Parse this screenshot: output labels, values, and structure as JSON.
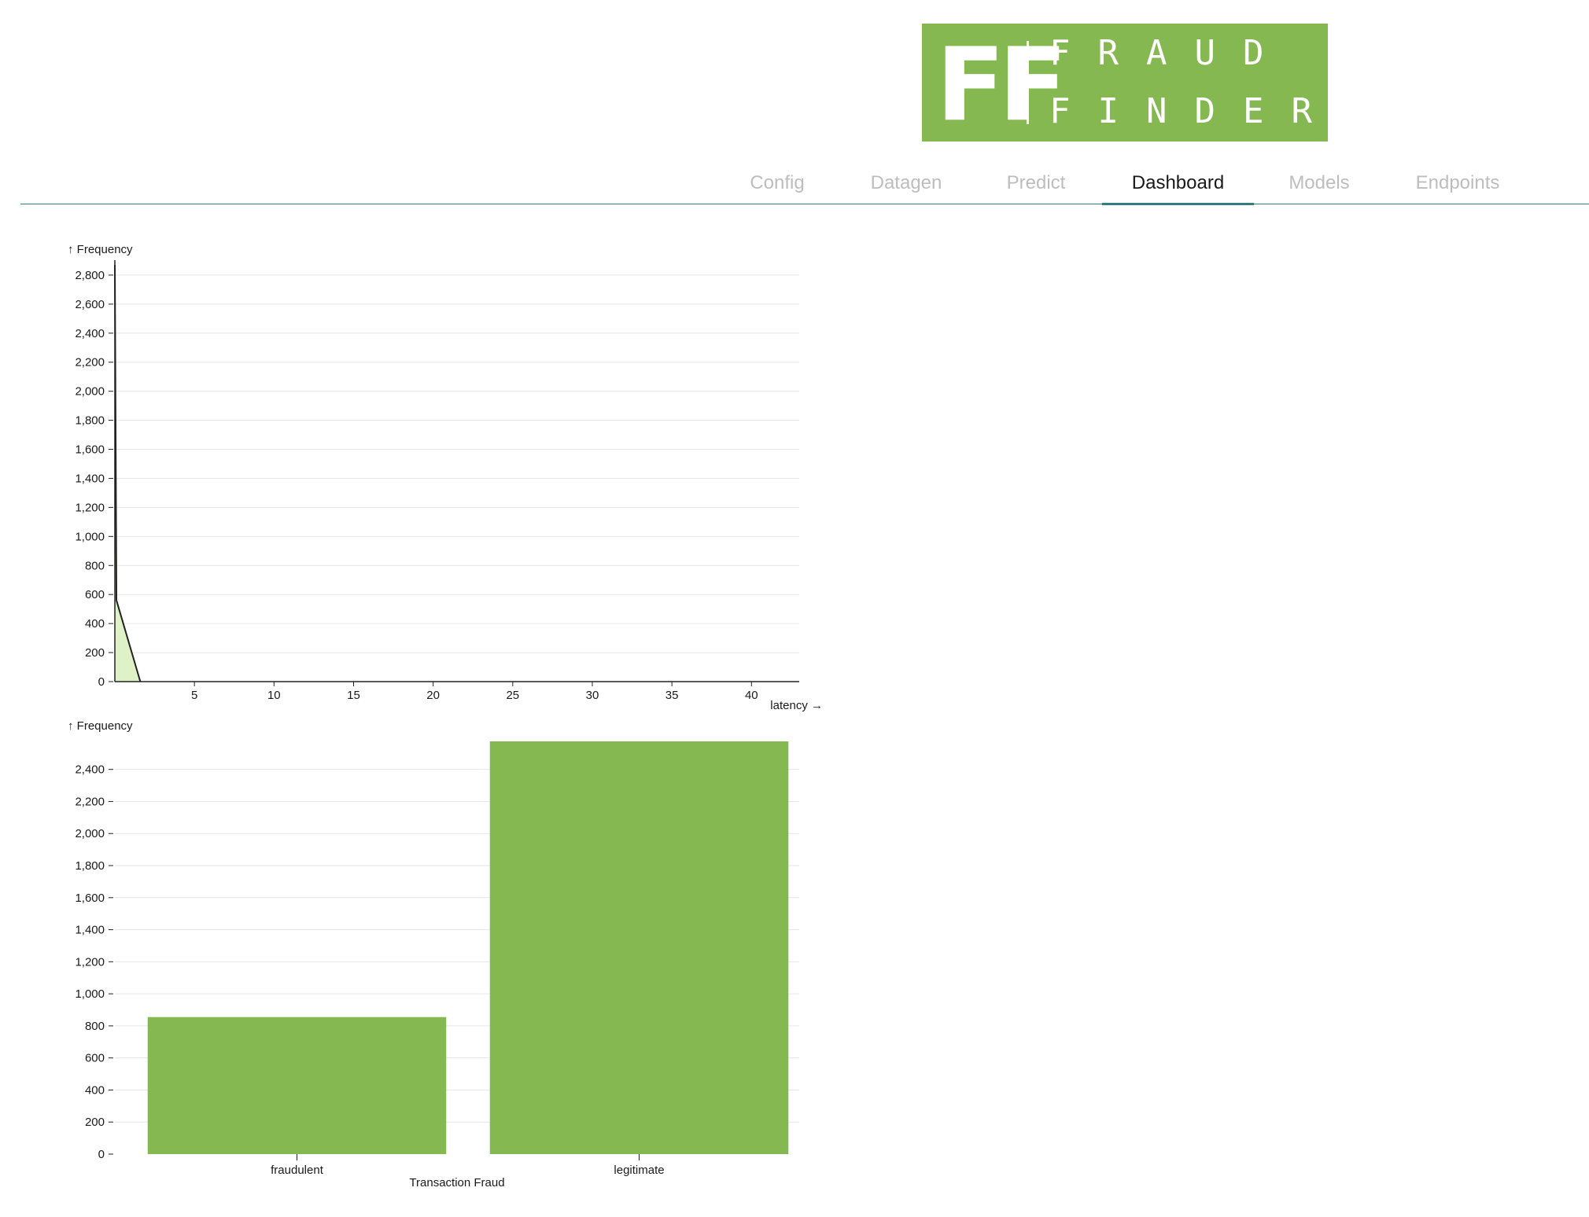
{
  "logo": {
    "monogram": "FF",
    "line1": "FRAUD",
    "line2": "FINDER",
    "background": "#86b852",
    "foreground": "#ffffff"
  },
  "nav": {
    "tabs": [
      {
        "label": "Config",
        "active": false
      },
      {
        "label": "Datagen",
        "active": false
      },
      {
        "label": "Predict",
        "active": false
      },
      {
        "label": "Dashboard",
        "active": true
      },
      {
        "label": "Models",
        "active": false
      },
      {
        "label": "Endpoints",
        "active": false
      }
    ],
    "accent": "#2f7f82"
  },
  "colors": {
    "bar": "#86b852",
    "area_fill": "#dff2c7",
    "line": "#222222",
    "grid": "#e6e6e6"
  },
  "chart_data": [
    {
      "type": "area",
      "ylabel": "↑ Frequency",
      "xlabel": "latency →",
      "x": [
        0,
        0.1,
        1.6
      ],
      "y": [
        2870,
        560,
        0
      ],
      "xlim": [
        0,
        43
      ],
      "ylim": [
        0,
        2870
      ],
      "x_ticks": [
        5,
        10,
        15,
        20,
        25,
        30,
        35,
        40
      ],
      "y_ticks": [
        0,
        200,
        400,
        600,
        800,
        1000,
        1200,
        1400,
        1600,
        1800,
        2000,
        2200,
        2400,
        2600,
        2800
      ],
      "grid": true
    },
    {
      "type": "bar",
      "ylabel": "↑ Frequency",
      "xlabel": "Transaction Fraud",
      "categories": [
        "fraudulent",
        "legitimate"
      ],
      "values": [
        855,
        2575
      ],
      "ylim": [
        0,
        2575
      ],
      "y_ticks": [
        0,
        200,
        400,
        600,
        800,
        1000,
        1200,
        1400,
        1600,
        1800,
        2000,
        2200,
        2400
      ],
      "grid": true
    }
  ]
}
